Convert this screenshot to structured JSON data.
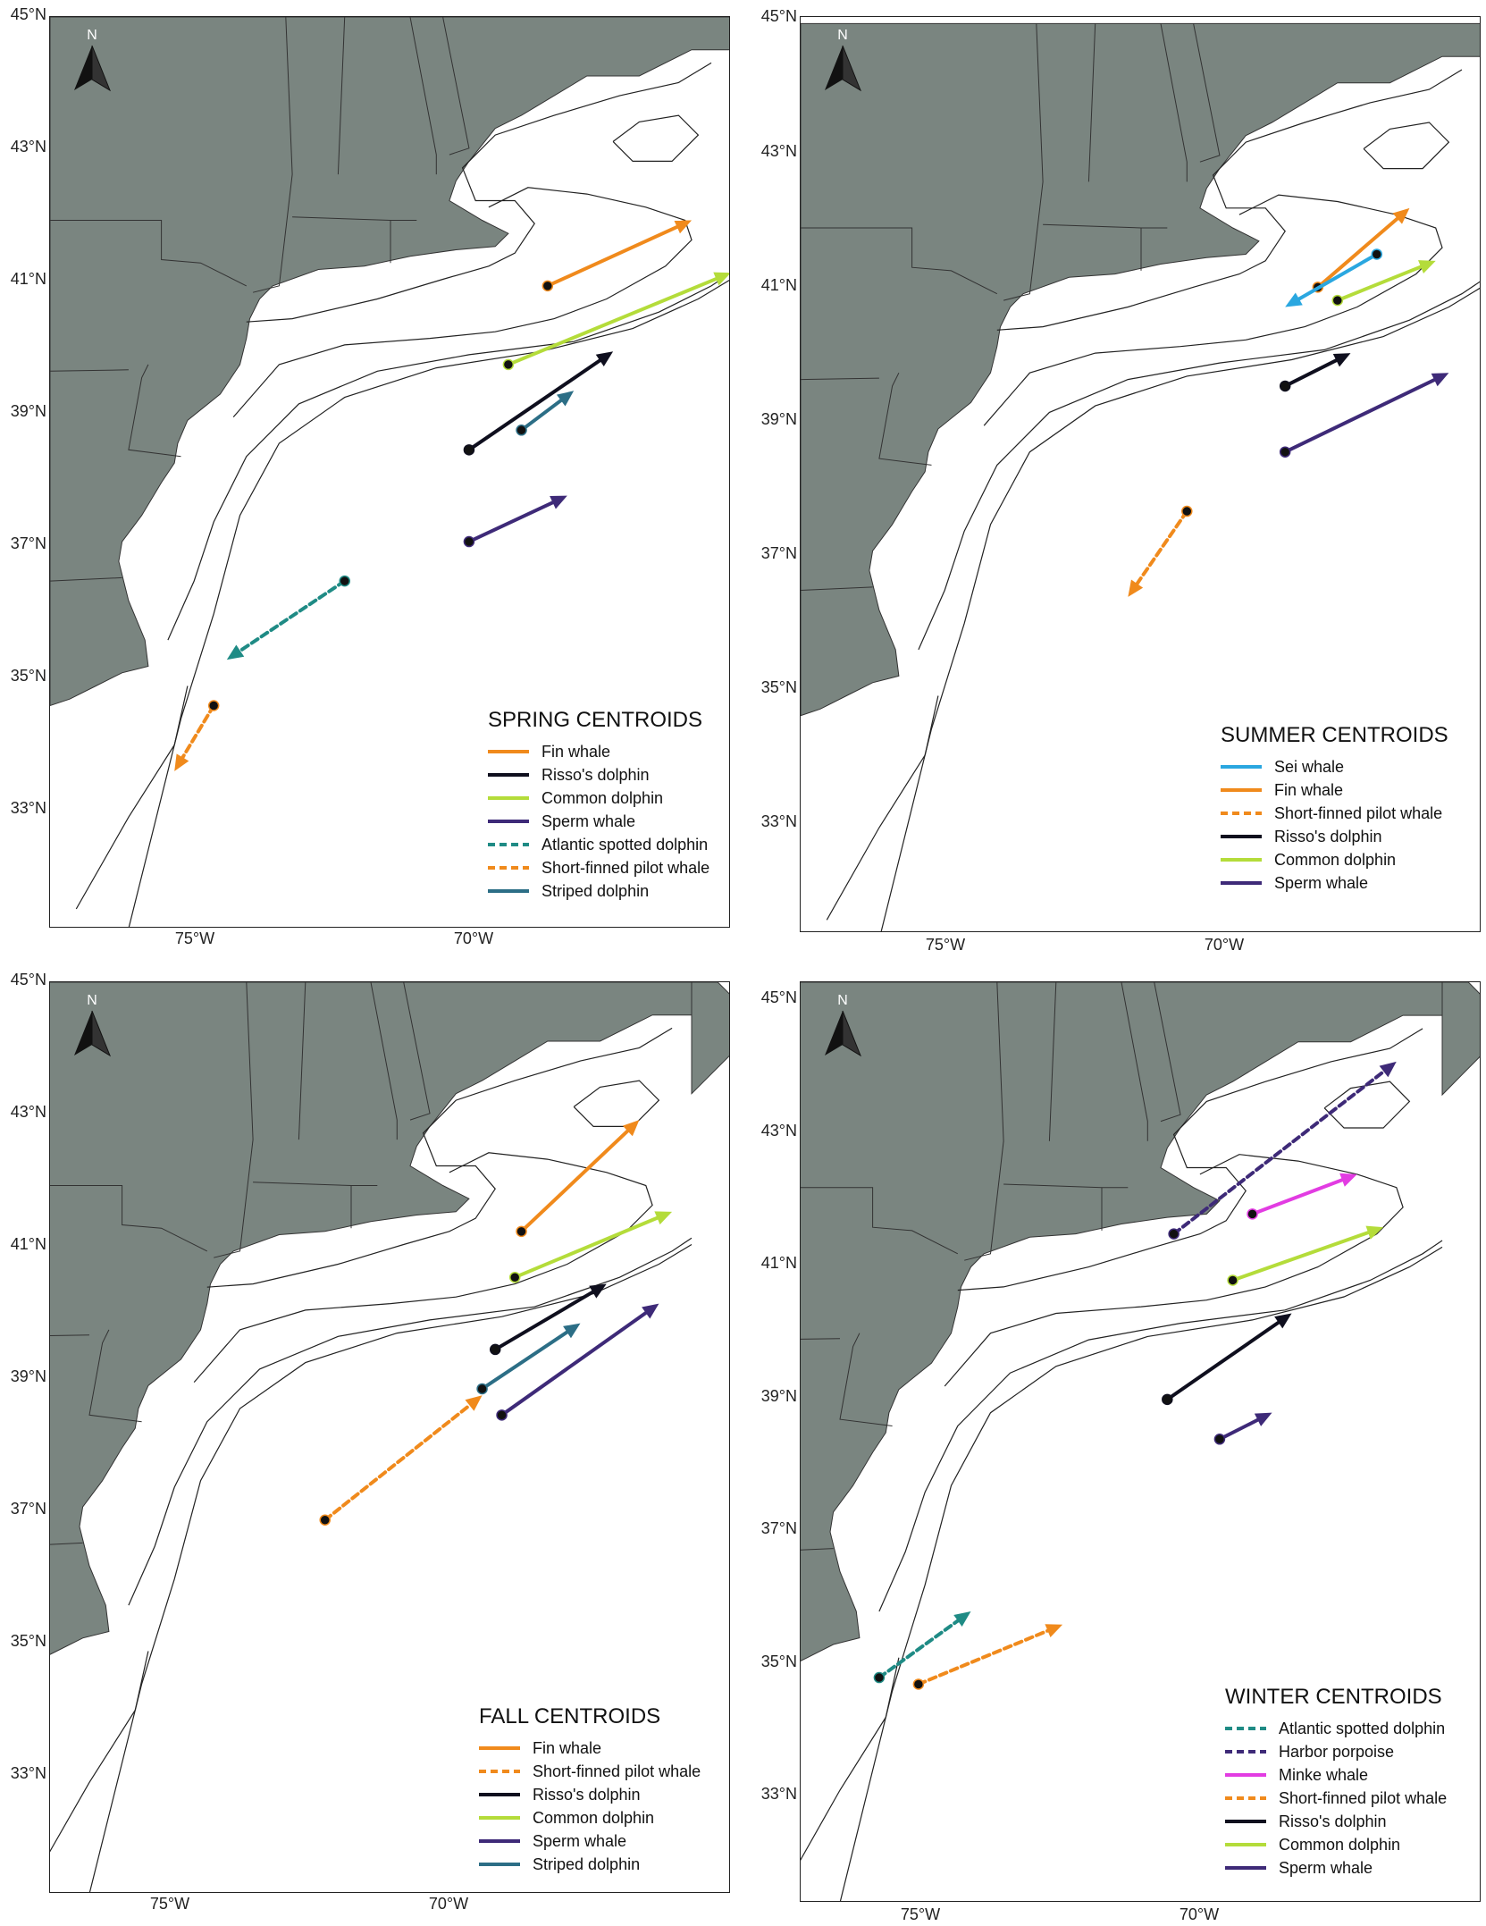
{
  "labels": {
    "lat": [
      "45°N",
      "43°N",
      "41°N",
      "39°N",
      "37°N",
      "35°N",
      "33°N"
    ],
    "lon": [
      "75°W",
      "70°W"
    ],
    "north": "N"
  },
  "colors": {
    "land": "#7a8580",
    "water": "#ffffff",
    "contour": "#222222"
  },
  "species_colors": {
    "Sei whale": "#2aa7e0",
    "Fin whale": "#f08a1c",
    "Risso's dolphin": "#0f0f1e",
    "Common dolphin": "#b4dc3a",
    "Sperm whale": "#3e2a78",
    "Atlantic spotted dolphin": "#1f8b85",
    "Short-finned pilot whale": "#f08a1c",
    "Striped dolphin": "#2c6e86",
    "Harbor porpoise": "#3e2a78",
    "Minke whale": "#e23ce2"
  },
  "panels": [
    {
      "title": "SPRING CENTROIDS",
      "legend": [
        {
          "label": "Fin whale",
          "dashed": false
        },
        {
          "label": "Risso's dolphin",
          "dashed": false
        },
        {
          "label": "Common dolphin",
          "dashed": false
        },
        {
          "label": "Sperm whale",
          "dashed": false
        },
        {
          "label": "Atlantic spotted dolphin",
          "dashed": true
        },
        {
          "label": "Short-finned pilot whale",
          "dashed": true
        },
        {
          "label": "Striped dolphin",
          "dashed": false
        }
      ],
      "arrows": [
        {
          "species": "Fin whale",
          "from": [
            -69.4,
            41.0
          ],
          "to": [
            -67.2,
            42.0
          ],
          "dashed": false
        },
        {
          "species": "Common dolphin",
          "from": [
            -70.0,
            39.8
          ],
          "to": [
            -66.6,
            41.2
          ],
          "dashed": false
        },
        {
          "species": "Risso's dolphin",
          "from": [
            -70.6,
            38.5
          ],
          "to": [
            -68.4,
            40.0
          ],
          "dashed": false
        },
        {
          "species": "Striped dolphin",
          "from": [
            -69.8,
            38.8
          ],
          "to": [
            -69.0,
            39.4
          ],
          "dashed": false
        },
        {
          "species": "Sperm whale",
          "from": [
            -70.6,
            37.1
          ],
          "to": [
            -69.1,
            37.8
          ],
          "dashed": false
        },
        {
          "species": "Atlantic spotted dolphin",
          "from": [
            -72.5,
            36.5
          ],
          "to": [
            -74.3,
            35.3
          ],
          "dashed": true
        },
        {
          "species": "Short-finned pilot whale",
          "from": [
            -74.5,
            34.6
          ],
          "to": [
            -75.1,
            33.6
          ],
          "dashed": true
        }
      ]
    },
    {
      "title": "SUMMER CENTROIDS",
      "legend": [
        {
          "label": "Sei whale",
          "dashed": false
        },
        {
          "label": "Fin whale",
          "dashed": false
        },
        {
          "label": "Short-finned pilot whale",
          "dashed": true
        },
        {
          "label": "Risso's dolphin",
          "dashed": false
        },
        {
          "label": "Common dolphin",
          "dashed": false
        },
        {
          "label": "Sperm whale",
          "dashed": false
        }
      ],
      "arrows": [
        {
          "species": "Fin whale",
          "from": [
            -69.1,
            41.1
          ],
          "to": [
            -67.7,
            42.3
          ],
          "dashed": false
        },
        {
          "species": "Sei whale",
          "from": [
            -68.2,
            41.6
          ],
          "to": [
            -69.6,
            40.8
          ],
          "dashed": false
        },
        {
          "species": "Common dolphin",
          "from": [
            -68.8,
            40.9
          ],
          "to": [
            -67.3,
            41.5
          ],
          "dashed": false
        },
        {
          "species": "Risso's dolphin",
          "from": [
            -69.6,
            39.6
          ],
          "to": [
            -68.6,
            40.1
          ],
          "dashed": false
        },
        {
          "species": "Sperm whale",
          "from": [
            -69.6,
            38.6
          ],
          "to": [
            -67.1,
            39.8
          ],
          "dashed": false
        },
        {
          "species": "Short-finned pilot whale",
          "from": [
            -71.1,
            37.7
          ],
          "to": [
            -72.0,
            36.4
          ],
          "dashed": true
        }
      ]
    },
    {
      "title": "FALL CENTROIDS",
      "legend": [
        {
          "label": "Fin whale",
          "dashed": false
        },
        {
          "label": "Short-finned pilot whale",
          "dashed": true
        },
        {
          "label": "Risso's dolphin",
          "dashed": false
        },
        {
          "label": "Common dolphin",
          "dashed": false
        },
        {
          "label": "Sperm whale",
          "dashed": false
        },
        {
          "label": "Striped dolphin",
          "dashed": false
        }
      ],
      "arrows": [
        {
          "species": "Fin whale",
          "from": [
            -69.2,
            41.3
          ],
          "to": [
            -67.4,
            43.0
          ],
          "dashed": false
        },
        {
          "species": "Common dolphin",
          "from": [
            -69.3,
            40.6
          ],
          "to": [
            -66.9,
            41.6
          ],
          "dashed": false
        },
        {
          "species": "Risso's dolphin",
          "from": [
            -69.6,
            39.5
          ],
          "to": [
            -67.9,
            40.5
          ],
          "dashed": false
        },
        {
          "species": "Striped dolphin",
          "from": [
            -69.8,
            38.9
          ],
          "to": [
            -68.3,
            39.9
          ],
          "dashed": false
        },
        {
          "species": "Sperm whale",
          "from": [
            -69.5,
            38.5
          ],
          "to": [
            -67.1,
            40.2
          ],
          "dashed": false
        },
        {
          "species": "Short-finned pilot whale",
          "from": [
            -72.2,
            36.9
          ],
          "to": [
            -69.8,
            38.8
          ],
          "dashed": true
        }
      ]
    },
    {
      "title": "WINTER CENTROIDS",
      "legend": [
        {
          "label": "Atlantic spotted dolphin",
          "dashed": true
        },
        {
          "label": "Harbor porpoise",
          "dashed": true
        },
        {
          "label": "Minke whale",
          "dashed": false
        },
        {
          "label": "Short-finned pilot whale",
          "dashed": true
        },
        {
          "label": "Risso's dolphin",
          "dashed": false
        },
        {
          "label": "Common dolphin",
          "dashed": false
        },
        {
          "label": "Sperm whale",
          "dashed": false
        }
      ],
      "arrows": [
        {
          "species": "Harbor porpoise",
          "from": [
            -70.7,
            41.3
          ],
          "to": [
            -67.3,
            43.9
          ],
          "dashed": true
        },
        {
          "species": "Minke whale",
          "from": [
            -69.5,
            41.6
          ],
          "to": [
            -67.9,
            42.2
          ],
          "dashed": false
        },
        {
          "species": "Common dolphin",
          "from": [
            -69.8,
            40.6
          ],
          "to": [
            -67.5,
            41.4
          ],
          "dashed": false
        },
        {
          "species": "Risso's dolphin",
          "from": [
            -70.8,
            38.8
          ],
          "to": [
            -68.9,
            40.1
          ],
          "dashed": false
        },
        {
          "species": "Sperm whale",
          "from": [
            -70.0,
            38.2
          ],
          "to": [
            -69.2,
            38.6
          ],
          "dashed": false
        },
        {
          "species": "Atlantic spotted dolphin",
          "from": [
            -75.2,
            34.6
          ],
          "to": [
            -73.8,
            35.6
          ],
          "dashed": true
        },
        {
          "species": "Short-finned pilot whale",
          "from": [
            -74.6,
            34.5
          ],
          "to": [
            -72.4,
            35.4
          ],
          "dashed": true
        }
      ]
    }
  ]
}
